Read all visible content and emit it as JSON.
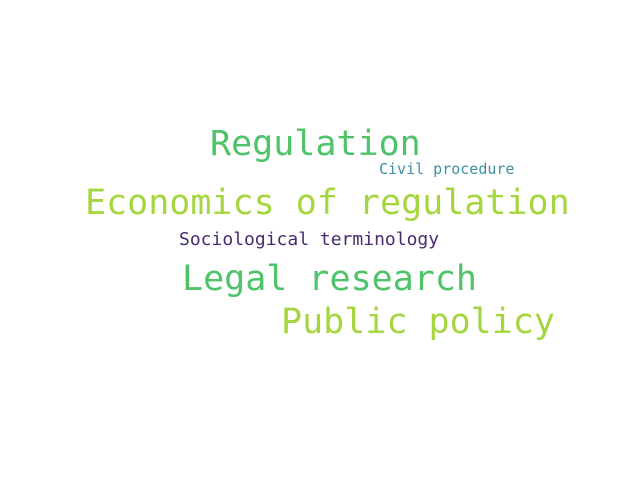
{
  "word_cloud": {
    "words": [
      {
        "text": "Regulation",
        "color": "#4ec36a"
      },
      {
        "text": "Civil procedure",
        "color": "#3f8fa3"
      },
      {
        "text": "Economics of regulation",
        "color": "#a6d63f"
      },
      {
        "text": "Sociological terminology",
        "color": "#482b6e"
      },
      {
        "text": "Legal research",
        "color": "#4ec36a"
      },
      {
        "text": "Public policy",
        "color": "#a6d63f"
      }
    ]
  }
}
